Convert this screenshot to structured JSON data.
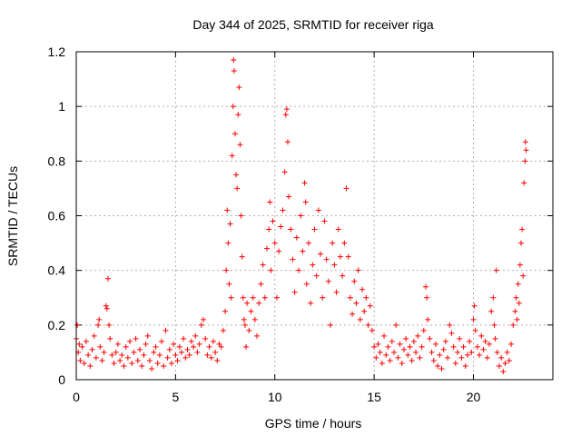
{
  "chart_data": {
    "type": "scatter",
    "title": "Day 344 of 2025, SRMTID for receiver riga",
    "xlabel": "GPS time / hours",
    "ylabel": "SRMTID / TECUs",
    "xlim": [
      0,
      24
    ],
    "ylim": [
      0,
      1.2
    ],
    "x_ticks": [
      0,
      5,
      10,
      15,
      20
    ],
    "x_tick_labels": [
      "0",
      "5",
      "10",
      "15",
      "20"
    ],
    "y_ticks": [
      0,
      0.2,
      0.4,
      0.6,
      0.8,
      1.0,
      1.2
    ],
    "y_tick_labels": [
      "0",
      "0.2",
      "0.4",
      "0.6",
      "0.8",
      "1",
      "1.2"
    ],
    "grid": true,
    "marker": "+",
    "colors": {
      "series": "#ff0000",
      "grid": "#b0b0b0",
      "axis": "#000000"
    },
    "series": [
      {
        "name": "SRMTID",
        "points": [
          [
            0.0,
            0.15
          ],
          [
            0.05,
            0.2
          ],
          [
            0.1,
            0.1
          ],
          [
            0.15,
            0.13
          ],
          [
            0.2,
            0.07
          ],
          [
            0.3,
            0.12
          ],
          [
            0.4,
            0.06
          ],
          [
            0.5,
            0.14
          ],
          [
            0.6,
            0.09
          ],
          [
            0.7,
            0.05
          ],
          [
            0.8,
            0.11
          ],
          [
            0.9,
            0.16
          ],
          [
            1.0,
            0.08
          ],
          [
            1.1,
            0.2
          ],
          [
            1.15,
            0.22
          ],
          [
            1.2,
            0.12
          ],
          [
            1.3,
            0.07
          ],
          [
            1.4,
            0.1
          ],
          [
            1.5,
            0.27
          ],
          [
            1.55,
            0.26
          ],
          [
            1.6,
            0.37
          ],
          [
            1.65,
            0.2
          ],
          [
            1.7,
            0.15
          ],
          [
            1.8,
            0.09
          ],
          [
            1.9,
            0.06
          ],
          [
            2.0,
            0.1
          ],
          [
            2.1,
            0.13
          ],
          [
            2.2,
            0.07
          ],
          [
            2.3,
            0.09
          ],
          [
            2.4,
            0.05
          ],
          [
            2.5,
            0.12
          ],
          [
            2.6,
            0.08
          ],
          [
            2.7,
            0.14
          ],
          [
            2.8,
            0.06
          ],
          [
            2.9,
            0.1
          ],
          [
            3.0,
            0.15
          ],
          [
            3.1,
            0.07
          ],
          [
            3.2,
            0.11
          ],
          [
            3.3,
            0.05
          ],
          [
            3.4,
            0.09
          ],
          [
            3.5,
            0.13
          ],
          [
            3.6,
            0.16
          ],
          [
            3.7,
            0.07
          ],
          [
            3.8,
            0.04
          ],
          [
            3.9,
            0.1
          ],
          [
            4.0,
            0.12
          ],
          [
            4.1,
            0.06
          ],
          [
            4.2,
            0.09
          ],
          [
            4.3,
            0.14
          ],
          [
            4.4,
            0.05
          ],
          [
            4.5,
            0.18
          ],
          [
            4.6,
            0.08
          ],
          [
            4.7,
            0.11
          ],
          [
            4.8,
            0.06
          ],
          [
            4.9,
            0.13
          ],
          [
            5.0,
            0.09
          ],
          [
            5.1,
            0.07
          ],
          [
            5.2,
            0.12
          ],
          [
            5.3,
            0.1
          ],
          [
            5.4,
            0.15
          ],
          [
            5.5,
            0.08
          ],
          [
            5.6,
            0.11
          ],
          [
            5.7,
            0.09
          ],
          [
            5.8,
            0.14
          ],
          [
            5.9,
            0.12
          ],
          [
            6.0,
            0.16
          ],
          [
            6.1,
            0.1
          ],
          [
            6.2,
            0.13
          ],
          [
            6.3,
            0.2
          ],
          [
            6.4,
            0.22
          ],
          [
            6.5,
            0.15
          ],
          [
            6.6,
            0.09
          ],
          [
            6.7,
            0.12
          ],
          [
            6.8,
            0.08
          ],
          [
            6.9,
            0.14
          ],
          [
            7.0,
            0.1
          ],
          [
            7.1,
            0.07
          ],
          [
            7.2,
            0.13
          ],
          [
            7.3,
            0.12
          ],
          [
            7.4,
            0.18
          ],
          [
            7.5,
            0.25
          ],
          [
            7.55,
            0.4
          ],
          [
            7.6,
            0.62
          ],
          [
            7.65,
            0.5
          ],
          [
            7.7,
            0.35
          ],
          [
            7.75,
            0.57
          ],
          [
            7.8,
            0.3
          ],
          [
            7.85,
            0.82
          ],
          [
            7.9,
            1.0
          ],
          [
            7.92,
            1.17
          ],
          [
            7.95,
            1.13
          ],
          [
            8.0,
            0.9
          ],
          [
            8.05,
            0.75
          ],
          [
            8.1,
            0.7
          ],
          [
            8.15,
            0.97
          ],
          [
            8.2,
            1.07
          ],
          [
            8.25,
            0.86
          ],
          [
            8.3,
            0.6
          ],
          [
            8.35,
            0.45
          ],
          [
            8.4,
            0.3
          ],
          [
            8.45,
            0.22
          ],
          [
            8.5,
            0.2
          ],
          [
            8.55,
            0.12
          ],
          [
            8.6,
            0.28
          ],
          [
            8.7,
            0.18
          ],
          [
            8.8,
            0.25
          ],
          [
            8.9,
            0.3
          ],
          [
            9.0,
            0.22
          ],
          [
            9.1,
            0.16
          ],
          [
            9.2,
            0.28
          ],
          [
            9.3,
            0.35
          ],
          [
            9.4,
            0.42
          ],
          [
            9.5,
            0.3
          ],
          [
            9.6,
            0.48
          ],
          [
            9.7,
            0.55
          ],
          [
            9.75,
            0.65
          ],
          [
            9.8,
            0.4
          ],
          [
            9.9,
            0.58
          ],
          [
            10.0,
            0.5
          ],
          [
            10.1,
            0.3
          ],
          [
            10.2,
            0.47
          ],
          [
            10.3,
            0.56
          ],
          [
            10.4,
            0.62
          ],
          [
            10.5,
            0.76
          ],
          [
            10.55,
            0.97
          ],
          [
            10.6,
            0.99
          ],
          [
            10.65,
            0.87
          ],
          [
            10.7,
            0.67
          ],
          [
            10.8,
            0.55
          ],
          [
            10.9,
            0.44
          ],
          [
            11.0,
            0.32
          ],
          [
            11.1,
            0.52
          ],
          [
            11.2,
            0.4
          ],
          [
            11.3,
            0.6
          ],
          [
            11.4,
            0.47
          ],
          [
            11.5,
            0.72
          ],
          [
            11.55,
            0.65
          ],
          [
            11.6,
            0.35
          ],
          [
            11.7,
            0.5
          ],
          [
            11.8,
            0.28
          ],
          [
            11.9,
            0.42
          ],
          [
            12.0,
            0.55
          ],
          [
            12.1,
            0.38
          ],
          [
            12.2,
            0.62
          ],
          [
            12.3,
            0.46
          ],
          [
            12.4,
            0.3
          ],
          [
            12.5,
            0.58
          ],
          [
            12.6,
            0.44
          ],
          [
            12.7,
            0.36
          ],
          [
            12.8,
            0.2
          ],
          [
            12.9,
            0.5
          ],
          [
            13.0,
            0.42
          ],
          [
            13.1,
            0.32
          ],
          [
            13.2,
            0.55
          ],
          [
            13.3,
            0.45
          ],
          [
            13.4,
            0.38
          ],
          [
            13.5,
            0.5
          ],
          [
            13.6,
            0.7
          ],
          [
            13.7,
            0.45
          ],
          [
            13.8,
            0.3
          ],
          [
            13.9,
            0.24
          ],
          [
            14.0,
            0.36
          ],
          [
            14.1,
            0.28
          ],
          [
            14.2,
            0.4
          ],
          [
            14.3,
            0.22
          ],
          [
            14.4,
            0.33
          ],
          [
            14.5,
            0.25
          ],
          [
            14.6,
            0.3
          ],
          [
            14.7,
            0.2
          ],
          [
            14.8,
            0.27
          ],
          [
            14.9,
            0.18
          ],
          [
            15.0,
            0.12
          ],
          [
            15.1,
            0.08
          ],
          [
            15.2,
            0.13
          ],
          [
            15.3,
            0.1
          ],
          [
            15.4,
            0.06
          ],
          [
            15.5,
            0.16
          ],
          [
            15.6,
            0.09
          ],
          [
            15.7,
            0.12
          ],
          [
            15.8,
            0.07
          ],
          [
            15.9,
            0.14
          ],
          [
            16.0,
            0.1
          ],
          [
            16.1,
            0.2
          ],
          [
            16.2,
            0.08
          ],
          [
            16.3,
            0.13
          ],
          [
            16.4,
            0.06
          ],
          [
            16.5,
            0.11
          ],
          [
            16.6,
            0.15
          ],
          [
            16.7,
            0.09
          ],
          [
            16.8,
            0.12
          ],
          [
            16.9,
            0.07
          ],
          [
            17.0,
            0.14
          ],
          [
            17.1,
            0.1
          ],
          [
            17.2,
            0.16
          ],
          [
            17.3,
            0.08
          ],
          [
            17.4,
            0.12
          ],
          [
            17.5,
            0.18
          ],
          [
            17.6,
            0.34
          ],
          [
            17.65,
            0.3
          ],
          [
            17.7,
            0.22
          ],
          [
            17.8,
            0.15
          ],
          [
            17.9,
            0.1
          ],
          [
            18.0,
            0.07
          ],
          [
            18.1,
            0.13
          ],
          [
            18.2,
            0.05
          ],
          [
            18.3,
            0.09
          ],
          [
            18.4,
            0.04
          ],
          [
            18.5,
            0.11
          ],
          [
            18.6,
            0.14
          ],
          [
            18.7,
            0.08
          ],
          [
            18.8,
            0.2
          ],
          [
            18.9,
            0.17
          ],
          [
            19.0,
            0.12
          ],
          [
            19.1,
            0.06
          ],
          [
            19.2,
            0.1
          ],
          [
            19.3,
            0.15
          ],
          [
            19.4,
            0.08
          ],
          [
            19.5,
            0.12
          ],
          [
            19.6,
            0.05
          ],
          [
            19.7,
            0.09
          ],
          [
            19.8,
            0.14
          ],
          [
            19.9,
            0.1
          ],
          [
            20.0,
            0.22
          ],
          [
            20.05,
            0.27
          ],
          [
            20.1,
            0.18
          ],
          [
            20.2,
            0.12
          ],
          [
            20.3,
            0.09
          ],
          [
            20.4,
            0.16
          ],
          [
            20.5,
            0.11
          ],
          [
            20.6,
            0.14
          ],
          [
            20.7,
            0.08
          ],
          [
            20.8,
            0.13
          ],
          [
            20.9,
            0.25
          ],
          [
            21.0,
            0.3
          ],
          [
            21.05,
            0.2
          ],
          [
            21.1,
            0.15
          ],
          [
            21.15,
            0.4
          ],
          [
            21.2,
            0.1
          ],
          [
            21.3,
            0.05
          ],
          [
            21.4,
            0.08
          ],
          [
            21.5,
            0.03
          ],
          [
            21.6,
            0.06
          ],
          [
            21.7,
            0.1
          ],
          [
            21.8,
            0.07
          ],
          [
            21.9,
            0.13
          ],
          [
            22.0,
            0.2
          ],
          [
            22.1,
            0.25
          ],
          [
            22.15,
            0.3
          ],
          [
            22.2,
            0.22
          ],
          [
            22.25,
            0.35
          ],
          [
            22.3,
            0.28
          ],
          [
            22.35,
            0.42
          ],
          [
            22.4,
            0.5
          ],
          [
            22.45,
            0.55
          ],
          [
            22.5,
            0.38
          ],
          [
            22.55,
            0.72
          ],
          [
            22.6,
            0.8
          ],
          [
            22.62,
            0.87
          ],
          [
            22.65,
            0.84
          ]
        ]
      }
    ]
  }
}
